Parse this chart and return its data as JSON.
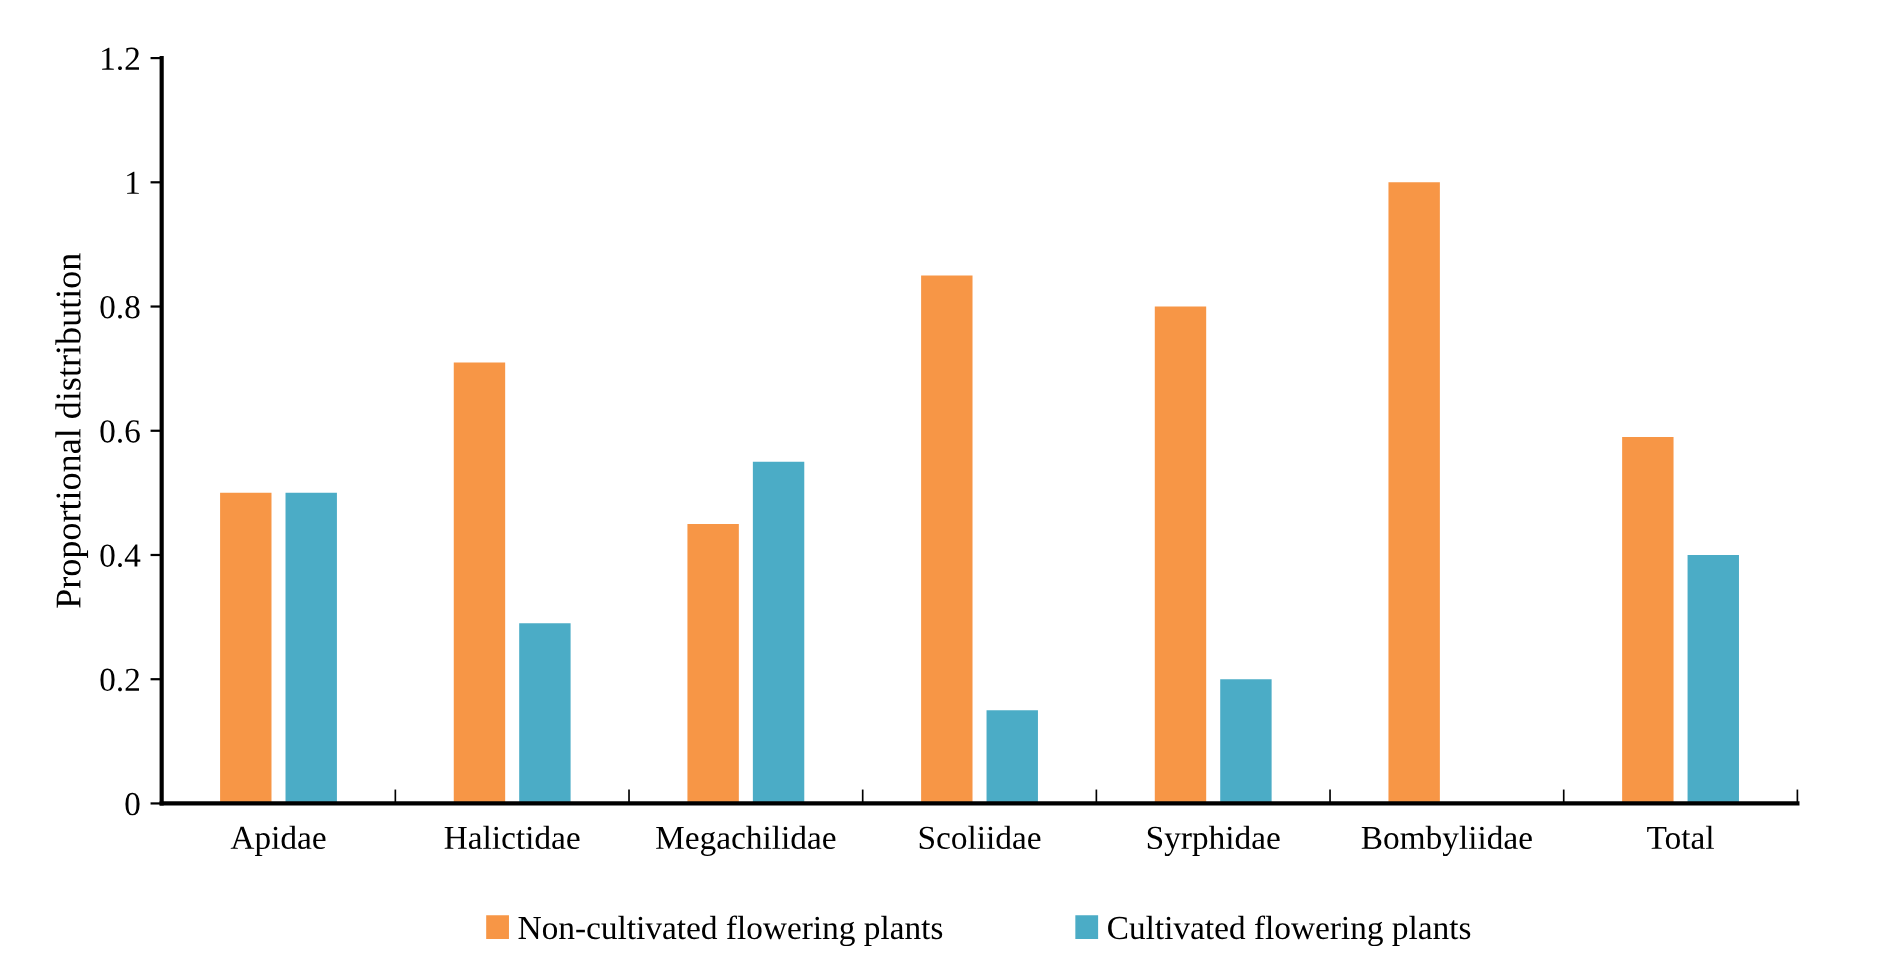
{
  "chart_data": {
    "type": "bar",
    "ylabel": "Proportional distribution",
    "categories": [
      "Apidae",
      "Halictidae",
      "Megachilidae",
      "Scoliidae",
      "Syrphidae",
      "Bombyliidae",
      "Total"
    ],
    "series": [
      {
        "name": "Non-cultivated flowering plants",
        "color": "#f79646",
        "values": [
          0.5,
          0.71,
          0.45,
          0.85,
          0.8,
          1.0,
          0.59
        ]
      },
      {
        "name": "Cultivated flowering plants",
        "color": "#4bacc6",
        "values": [
          0.5,
          0.29,
          0.55,
          0.15,
          0.2,
          0,
          0.4
        ]
      }
    ],
    "ylim": [
      0,
      1.2
    ],
    "yticks": [
      0,
      0.2,
      0.4,
      0.6,
      0.8,
      1,
      1.2
    ],
    "grid": false,
    "legend": "bottom"
  }
}
